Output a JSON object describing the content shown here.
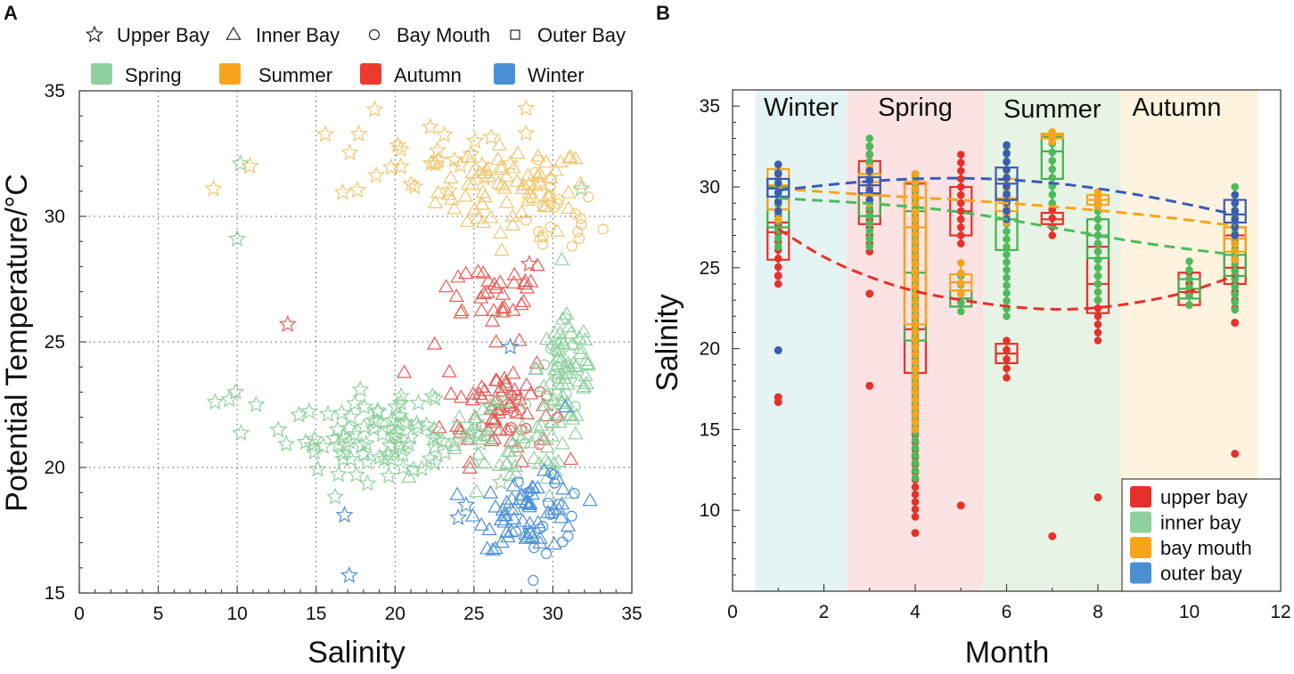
{
  "figure": {
    "panel_a_label": "A",
    "panel_b_label": "B"
  },
  "chart_data": [
    {
      "type": "scatter",
      "panel": "A",
      "xlabel": "Salinity",
      "ylabel": "Potential Temperature/°C",
      "xlim": [
        0,
        35
      ],
      "ylim": [
        15,
        35
      ],
      "xticks": [
        "0",
        "5",
        "10",
        "15",
        "20",
        "25",
        "30",
        "35"
      ],
      "yticks": [
        "15",
        "20",
        "25",
        "30",
        "35"
      ],
      "grid": "dotted",
      "marker_legend": [
        {
          "symbol": "☆",
          "label": "Upper Bay",
          "shape": "star"
        },
        {
          "symbol": "△",
          "label": "Inner Bay",
          "shape": "triangle"
        },
        {
          "symbol": "○",
          "label": "Bay Mouth",
          "shape": "circle"
        },
        {
          "symbol": "□",
          "label": "Outer Bay",
          "shape": "square"
        }
      ],
      "season_legend": [
        {
          "label": "Spring",
          "color": "#8fd19e"
        },
        {
          "label": "Summer",
          "color": "#f7a41d"
        },
        {
          "label": "Autumn",
          "color": "#ee3a2e"
        },
        {
          "label": "Winter",
          "color": "#4a90d9"
        }
      ],
      "clusters": [
        {
          "season": "Summer",
          "color": "#f2c66d",
          "shape": "triangle",
          "cx": 27.5,
          "cy": 31,
          "sx": 2.4,
          "sy": 0.9,
          "n": 70
        },
        {
          "season": "Summer",
          "color": "#f2c66d",
          "shape": "circle",
          "cx": 30,
          "cy": 30,
          "sx": 1.5,
          "sy": 0.9,
          "n": 25
        },
        {
          "season": "Summer",
          "color": "#f2c66d",
          "shape": "star",
          "cx": 22,
          "cy": 32.3,
          "sx": 2.8,
          "sy": 0.9,
          "n": 28
        },
        {
          "season": "Autumn",
          "color": "#e85b57",
          "shape": "triangle",
          "cx": 26,
          "cy": 27,
          "sx": 2.0,
          "sy": 0.7,
          "n": 32
        },
        {
          "season": "Autumn",
          "color": "#e85b57",
          "shape": "triangle",
          "cx": 26.5,
          "cy": 22.5,
          "sx": 1.7,
          "sy": 1.1,
          "n": 60
        },
        {
          "season": "Autumn",
          "color": "#e85b57",
          "shape": "circle",
          "cx": 27.5,
          "cy": 22.2,
          "sx": 1.0,
          "sy": 0.8,
          "n": 18
        },
        {
          "season": "Spring",
          "color": "#8fd19e",
          "shape": "star",
          "cx": 19.5,
          "cy": 21.2,
          "sx": 3.2,
          "sy": 0.7,
          "n": 90
        },
        {
          "season": "Spring",
          "color": "#8fd19e",
          "shape": "triangle",
          "cx": 31,
          "cy": 24,
          "sx": 1.0,
          "sy": 1.3,
          "n": 55
        },
        {
          "season": "Spring",
          "color": "#8fd19e",
          "shape": "triangle",
          "cx": 27.5,
          "cy": 20.5,
          "sx": 2.5,
          "sy": 1.0,
          "n": 55
        },
        {
          "season": "Spring",
          "color": "#8fd19e",
          "shape": "circle",
          "cx": 30.5,
          "cy": 23.5,
          "sx": 1.0,
          "sy": 1.0,
          "n": 18
        },
        {
          "season": "Winter",
          "color": "#4a90d9",
          "shape": "triangle",
          "cx": 28.5,
          "cy": 18.2,
          "sx": 1.6,
          "sy": 0.7,
          "n": 55
        },
        {
          "season": "Winter",
          "color": "#4a90d9",
          "shape": "circle",
          "cx": 29.5,
          "cy": 18.5,
          "sx": 1.3,
          "sy": 0.8,
          "n": 20
        }
      ],
      "points": [
        {
          "x": 8.5,
          "y": 31.1,
          "shape": "star",
          "color": "#f2c66d"
        },
        {
          "x": 10.2,
          "y": 32.1,
          "shape": "star",
          "color": "#8fd19e"
        },
        {
          "x": 10.8,
          "y": 32.0,
          "shape": "star",
          "color": "#f2c66d"
        },
        {
          "x": 10.0,
          "y": 29.1,
          "shape": "star",
          "color": "#8fd19e"
        },
        {
          "x": 13.2,
          "y": 25.7,
          "shape": "star",
          "color": "#e85b57"
        },
        {
          "x": 8.6,
          "y": 22.6,
          "shape": "star",
          "color": "#8fd19e"
        },
        {
          "x": 9.5,
          "y": 22.7,
          "shape": "star",
          "color": "#8fd19e"
        },
        {
          "x": 9.9,
          "y": 23.0,
          "shape": "star",
          "color": "#8fd19e"
        },
        {
          "x": 11.2,
          "y": 22.5,
          "shape": "star",
          "color": "#8fd19e"
        },
        {
          "x": 12.6,
          "y": 21.5,
          "shape": "star",
          "color": "#8fd19e"
        },
        {
          "x": 16.8,
          "y": 18.1,
          "shape": "star",
          "color": "#4a90d9"
        },
        {
          "x": 17.1,
          "y": 15.7,
          "shape": "star",
          "color": "#4a90d9"
        },
        {
          "x": 28.3,
          "y": 34.3,
          "shape": "star",
          "color": "#f2c66d"
        },
        {
          "x": 28.3,
          "y": 33.3,
          "shape": "star",
          "color": "#f2c66d"
        },
        {
          "x": 28.5,
          "y": 28.1,
          "shape": "star",
          "color": "#e85b57"
        },
        {
          "x": 27.3,
          "y": 24.8,
          "shape": "star",
          "color": "#4a90d9"
        },
        {
          "x": 31.8,
          "y": 31.1,
          "shape": "star",
          "color": "#8fd19e"
        },
        {
          "x": 22.5,
          "y": 24.9,
          "shape": "triangle",
          "color": "#e85b57"
        },
        {
          "x": 24.0,
          "y": 18.0,
          "shape": "star",
          "color": "#4a90d9"
        },
        {
          "x": 24.5,
          "y": 18.5,
          "shape": "star",
          "color": "#4a90d9"
        },
        {
          "x": 26.2,
          "y": 16.7,
          "shape": "triangle",
          "color": "#4a90d9"
        },
        {
          "x": 28.8,
          "y": 16.8,
          "shape": "circle",
          "color": "#4a90d9"
        },
        {
          "x": 17.8,
          "y": 23.1,
          "shape": "star",
          "color": "#8fd19e"
        },
        {
          "x": 30.8,
          "y": 22.4,
          "shape": "triangle",
          "color": "#4a90d9"
        }
      ]
    },
    {
      "type": "box",
      "panel": "B",
      "xlabel": "Month",
      "ylabel": "Salinity",
      "xlim": [
        0,
        12
      ],
      "ylim": [
        5,
        36
      ],
      "xticks": [
        "0",
        "2",
        "4",
        "6",
        "8",
        "10",
        "12"
      ],
      "yticks": [
        "10",
        "15",
        "20",
        "25",
        "30",
        "35"
      ],
      "season_bands": [
        {
          "label": "Winter",
          "x0": 0.5,
          "x1": 2.5,
          "color": "#e4f3f3"
        },
        {
          "label": "Spring",
          "x0": 2.5,
          "x1": 5.5,
          "color": "#fbe3e3"
        },
        {
          "label": "Summer",
          "x0": 5.5,
          "x1": 8.5,
          "color": "#e7f3e4"
        },
        {
          "label": "Autumn",
          "x0": 8.5,
          "x1": 11.5,
          "color": "#fdf3de"
        }
      ],
      "legend": [
        {
          "label": "upper bay",
          "color": "#e8302a"
        },
        {
          "label": "inner bay",
          "color": "#8fd19e"
        },
        {
          "label": "bay mouth",
          "color": "#f7a41d"
        },
        {
          "label": "outer bay",
          "color": "#4a8fd1"
        }
      ],
      "series": [
        {
          "name": "upper bay",
          "color": "#e8302a",
          "boxes": [
            {
              "month": 1,
              "q1": 25.5,
              "median": 27.2,
              "q3": 27.8,
              "lo": 24.0,
              "hi": 28.2
            },
            {
              "month": 3,
              "q1": 27.7,
              "median": 29.6,
              "q3": 31.6,
              "lo": 26.0,
              "hi": 32.5
            },
            {
              "month": 4,
              "q1": 18.5,
              "median": 21.2,
              "q3": 30.2,
              "lo": 9.6,
              "hi": 30.8
            },
            {
              "month": 5,
              "q1": 27.0,
              "median": 28.5,
              "q3": 30.0,
              "lo": 26.5,
              "hi": 32.0
            },
            {
              "month": 6,
              "q1": 19.1,
              "median": 19.7,
              "q3": 20.3,
              "lo": 18.2,
              "hi": 20.5
            },
            {
              "month": 7,
              "q1": 27.7,
              "median": 28.0,
              "q3": 28.4,
              "lo": 27.0,
              "hi": 28.6
            },
            {
              "month": 8,
              "q1": 22.2,
              "median": 24.0,
              "q3": 26.3,
              "lo": 20.5,
              "hi": 27.0
            },
            {
              "month": 10,
              "q1": 22.7,
              "median": 23.5,
              "q3": 24.7,
              "lo": 22.7,
              "hi": 24.7
            },
            {
              "month": 11,
              "q1": 24.0,
              "median": 25.0,
              "q3": 27.0,
              "lo": 22.5,
              "hi": 29.0
            }
          ],
          "outliers": [
            [
              1,
              17.0
            ],
            [
              1,
              16.7
            ],
            [
              1,
              24.5
            ],
            [
              3,
              17.7
            ],
            [
              3,
              23.4
            ],
            [
              4,
              8.6
            ],
            [
              5,
              10.3
            ],
            [
              7,
              8.4
            ],
            [
              8,
              10.8
            ],
            [
              11,
              13.5
            ],
            [
              11,
              21.6
            ]
          ],
          "trend": [
            [
              1,
              27.4
            ],
            [
              2,
              25.6
            ],
            [
              3,
              24.4
            ],
            [
              4,
              23.5
            ],
            [
              5,
              23.0
            ],
            [
              6,
              22.6
            ],
            [
              7,
              22.4
            ],
            [
              8,
              22.5
            ],
            [
              9,
              22.9
            ],
            [
              10,
              23.5
            ],
            [
              11,
              24.5
            ]
          ]
        },
        {
          "name": "inner bay",
          "color": "#3fb34f",
          "boxes": [
            {
              "month": 1,
              "q1": 27.5,
              "median": 28.6,
              "q3": 30.0,
              "lo": 26.3,
              "hi": 31.0
            },
            {
              "month": 3,
              "q1": 28.2,
              "median": 29.6,
              "q3": 30.8,
              "lo": 26.3,
              "hi": 33.0
            },
            {
              "month": 4,
              "q1": 20.5,
              "median": 24.7,
              "q3": 28.5,
              "lo": 12.0,
              "hi": 30.6
            },
            {
              "month": 5,
              "q1": 22.6,
              "median": 23.1,
              "q3": 23.6,
              "lo": 22.3,
              "hi": 24.5
            },
            {
              "month": 6,
              "q1": 26.1,
              "median": 28.0,
              "q3": 29.2,
              "lo": 22.0,
              "hi": 32.5
            },
            {
              "month": 7,
              "q1": 30.5,
              "median": 32.2,
              "q3": 33.1,
              "lo": 29.0,
              "hi": 33.2
            },
            {
              "month": 8,
              "q1": 25.6,
              "median": 27.0,
              "q3": 28.0,
              "lo": 23.0,
              "hi": 29.5
            },
            {
              "month": 10,
              "q1": 23.1,
              "median": 23.7,
              "q3": 24.3,
              "lo": 22.7,
              "hi": 25.4
            },
            {
              "month": 11,
              "q1": 24.5,
              "median": 25.8,
              "q3": 27.5,
              "lo": 22.4,
              "hi": 30.0
            }
          ],
          "outliers": [],
          "trend": [
            [
              1,
              29.3
            ],
            [
              3,
              29.0
            ],
            [
              5,
              28.5
            ],
            [
              7,
              27.5
            ],
            [
              9,
              26.5
            ],
            [
              11,
              25.8
            ]
          ]
        },
        {
          "name": "bay mouth",
          "color": "#f7a41d",
          "boxes": [
            {
              "month": 1,
              "q1": 28.6,
              "median": 30.1,
              "q3": 31.1,
              "lo": 28.0,
              "hi": 31.3
            },
            {
              "month": 3,
              "q1": 29.5,
              "median": 30.3,
              "q3": 30.8,
              "lo": 29.0,
              "hi": 31.2
            },
            {
              "month": 4,
              "q1": 21.5,
              "median": 27.5,
              "q3": 30.3,
              "lo": 15.0,
              "hi": 30.8
            },
            {
              "month": 5,
              "q1": 23.6,
              "median": 24.1,
              "q3": 24.6,
              "lo": 23.4,
              "hi": 25.3
            },
            {
              "month": 6,
              "q1": 28.5,
              "median": 29.3,
              "q3": 30.5,
              "lo": 27.8,
              "hi": 31.0
            },
            {
              "month": 7,
              "q1": 33.0,
              "median": 33.2,
              "q3": 33.3,
              "lo": 32.8,
              "hi": 33.4
            },
            {
              "month": 8,
              "q1": 28.9,
              "median": 29.2,
              "q3": 29.5,
              "lo": 28.8,
              "hi": 29.7
            },
            {
              "month": 11,
              "q1": 26.0,
              "median": 26.8,
              "q3": 27.5,
              "lo": 25.5,
              "hi": 28.0
            }
          ],
          "outliers": [],
          "trend": [
            [
              1,
              29.9
            ],
            [
              3,
              29.5
            ],
            [
              5,
              29.2
            ],
            [
              7,
              28.8
            ],
            [
              9,
              28.3
            ],
            [
              11,
              27.6
            ]
          ]
        },
        {
          "name": "outer bay",
          "color": "#3a5bb5",
          "boxes": [
            {
              "month": 1,
              "q1": 29.4,
              "median": 29.9,
              "q3": 30.5,
              "lo": 28.5,
              "hi": 31.4
            },
            {
              "month": 3,
              "q1": 29.6,
              "median": 30.1,
              "q3": 30.6,
              "lo": 29.2,
              "hi": 31.0
            },
            {
              "month": 6,
              "q1": 29.2,
              "median": 30.2,
              "q3": 31.2,
              "lo": 28.0,
              "hi": 32.6
            },
            {
              "month": 11,
              "q1": 27.8,
              "median": 28.3,
              "q3": 29.2,
              "lo": 27.0,
              "hi": 29.5
            }
          ],
          "outliers": [
            [
              1,
              19.9
            ]
          ],
          "trend": [
            [
              1,
              29.8
            ],
            [
              3,
              30.4
            ],
            [
              5,
              30.6
            ],
            [
              7,
              30.3
            ],
            [
              9,
              29.5
            ],
            [
              11,
              28.3
            ]
          ]
        }
      ]
    }
  ]
}
